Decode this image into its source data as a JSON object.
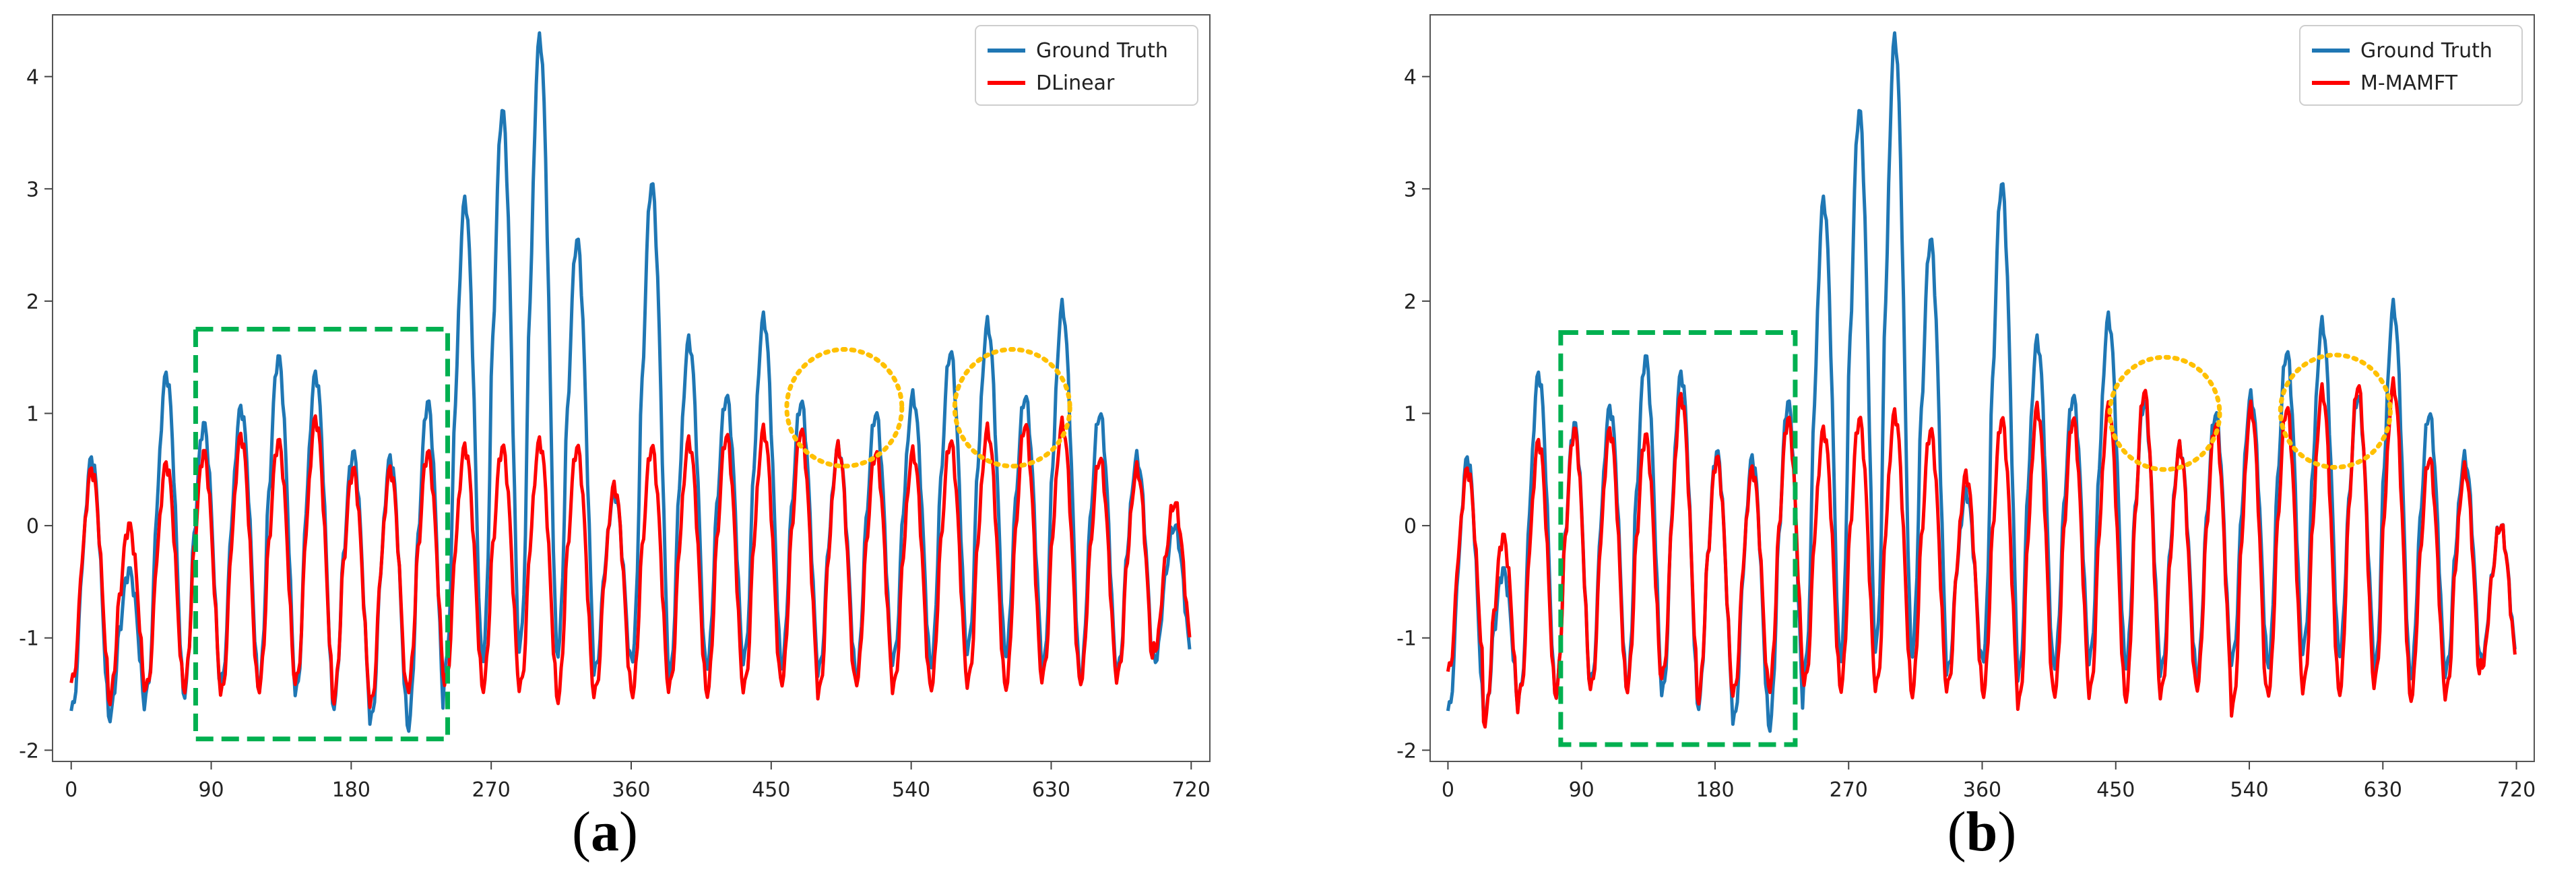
{
  "panels": [
    {
      "caption": "(a)",
      "caption_letter": "a",
      "legend": [
        "Ground Truth",
        "DLinear"
      ]
    },
    {
      "caption": "(b)",
      "caption_letter": "b",
      "legend": [
        "Ground Truth",
        "M-MAMFT"
      ]
    }
  ],
  "colors": {
    "ground_truth": "#1f77b4",
    "prediction": "#ff0000",
    "highlight_box": "#00b050",
    "highlight_circle": "#ffc000"
  },
  "chart_data": [
    {
      "type": "line",
      "title": "",
      "xlabel": "",
      "ylabel": "",
      "xlim": [
        -12,
        732
      ],
      "ylim": [
        -2.1,
        4.55
      ],
      "x_ticks": [
        0,
        90,
        180,
        270,
        360,
        450,
        540,
        630,
        720
      ],
      "y_ticks": [
        -2,
        -1,
        0,
        1,
        2,
        3,
        4
      ],
      "legend_position": "top-right",
      "grid": false,
      "period": 24,
      "n_points": 720,
      "series": [
        {
          "name": "Ground Truth",
          "color": "#1f77b4",
          "baseline": -1.35,
          "cycle_peaks": [
            0.6,
            -0.4,
            1.35,
            0.9,
            1.05,
            1.5,
            1.35,
            0.65,
            0.6,
            1.1,
            2.9,
            3.7,
            4.35,
            2.55,
            0.3,
            3.05,
            1.65,
            1.15,
            1.85,
            1.1,
            0.7,
            1.0,
            1.15,
            1.55,
            1.8,
            1.15,
            1.95,
            1.0,
            0.6,
            0.0
          ],
          "cycle_troughs": [
            -1.65,
            -1.7,
            -1.5,
            -1.5,
            -1.4,
            -1.45,
            -1.5,
            -1.6,
            -1.75,
            -1.8,
            -1.3,
            -1.2,
            -1.1,
            -1.15,
            -1.3,
            -1.2,
            -1.35,
            -1.25,
            -1.2,
            -1.25,
            -1.3,
            -1.35,
            -1.2,
            -1.25,
            -1.1,
            -1.15,
            -1.3,
            -1.35,
            -1.3,
            -1.2
          ]
        },
        {
          "name": "DLinear",
          "color": "#ff0000",
          "baseline": -1.2,
          "cycle_peaks": [
            0.5,
            0.0,
            0.55,
            0.65,
            0.8,
            0.75,
            0.95,
            0.5,
            0.5,
            0.65,
            0.7,
            0.7,
            0.75,
            0.7,
            0.35,
            0.7,
            0.75,
            0.8,
            0.85,
            0.85,
            0.7,
            0.65,
            0.65,
            0.75,
            0.85,
            0.9,
            0.9,
            0.6,
            0.5,
            0.2
          ],
          "cycle_troughs": [
            -1.4,
            -1.55,
            -1.45,
            -1.45,
            -1.5,
            -1.45,
            -1.4,
            -1.55,
            -1.6,
            -1.45,
            -1.4,
            -1.45,
            -1.45,
            -1.55,
            -1.5,
            -1.5,
            -1.45,
            -1.5,
            -1.45,
            -1.4,
            -1.5,
            -1.4,
            -1.45,
            -1.45,
            -1.4,
            -1.45,
            -1.35,
            -1.4,
            -1.35,
            -1.1
          ]
        }
      ],
      "highlight_box": {
        "x": [
          80,
          242
        ],
        "y": [
          -1.9,
          1.75
        ]
      },
      "highlight_circles": [
        {
          "cx": 497,
          "cy": 1.05,
          "rx": 37,
          "ry": 0.52
        },
        {
          "cx": 605,
          "cy": 1.05,
          "rx": 37,
          "ry": 0.52
        }
      ]
    },
    {
      "type": "line",
      "title": "",
      "xlabel": "",
      "ylabel": "",
      "xlim": [
        -12,
        732
      ],
      "ylim": [
        -2.1,
        4.55
      ],
      "x_ticks": [
        0,
        90,
        180,
        270,
        360,
        450,
        540,
        630,
        720
      ],
      "y_ticks": [
        -2,
        -1,
        0,
        1,
        2,
        3,
        4
      ],
      "legend_position": "top-right",
      "grid": false,
      "period": 24,
      "n_points": 720,
      "series": [
        {
          "name": "Ground Truth",
          "color": "#1f77b4",
          "baseline": -1.35,
          "cycle_peaks": [
            0.6,
            -0.4,
            1.35,
            0.9,
            1.05,
            1.5,
            1.35,
            0.65,
            0.6,
            1.1,
            2.9,
            3.7,
            4.35,
            2.55,
            0.3,
            3.05,
            1.65,
            1.15,
            1.85,
            1.1,
            0.7,
            1.0,
            1.15,
            1.55,
            1.8,
            1.15,
            1.95,
            1.0,
            0.6,
            0.0
          ],
          "cycle_troughs": [
            -1.65,
            -1.7,
            -1.5,
            -1.5,
            -1.4,
            -1.45,
            -1.5,
            -1.6,
            -1.75,
            -1.8,
            -1.3,
            -1.2,
            -1.1,
            -1.15,
            -1.3,
            -1.2,
            -1.35,
            -1.25,
            -1.2,
            -1.25,
            -1.3,
            -1.35,
            -1.2,
            -1.25,
            -1.1,
            -1.15,
            -1.3,
            -1.35,
            -1.3,
            -1.2
          ]
        },
        {
          "name": "M-MAMFT",
          "color": "#ff0000",
          "baseline": -1.2,
          "cycle_peaks": [
            0.5,
            -0.1,
            0.75,
            0.85,
            0.85,
            0.8,
            1.15,
            0.6,
            0.5,
            0.95,
            0.85,
            0.95,
            1.0,
            0.85,
            0.45,
            0.95,
            1.05,
            0.95,
            1.05,
            1.2,
            0.7,
            0.9,
            1.05,
            1.05,
            1.2,
            1.25,
            1.25,
            0.6,
            0.5,
            0.0
          ],
          "cycle_troughs": [
            -1.3,
            -1.75,
            -1.5,
            -1.5,
            -1.45,
            -1.45,
            -1.35,
            -1.55,
            -1.5,
            -1.45,
            -1.4,
            -1.45,
            -1.45,
            -1.5,
            -1.45,
            -1.5,
            -1.6,
            -1.5,
            -1.5,
            -1.55,
            -1.5,
            -1.45,
            -1.65,
            -1.5,
            -1.45,
            -1.5,
            -1.4,
            -1.55,
            -1.5,
            -1.25
          ]
        }
      ],
      "highlight_box": {
        "x": [
          76,
          234
        ],
        "y": [
          -1.95,
          1.72
        ]
      },
      "highlight_circles": [
        {
          "cx": 483,
          "cy": 1.0,
          "rx": 37,
          "ry": 0.5
        },
        {
          "cx": 598,
          "cy": 1.02,
          "rx": 37,
          "ry": 0.5
        }
      ]
    }
  ]
}
